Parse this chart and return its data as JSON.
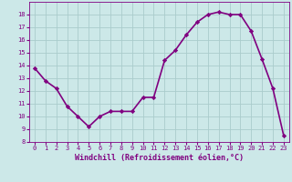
{
  "x": [
    0,
    1,
    2,
    3,
    4,
    5,
    6,
    7,
    8,
    9,
    10,
    11,
    12,
    13,
    14,
    15,
    16,
    17,
    18,
    19,
    20,
    21,
    22,
    23
  ],
  "y": [
    13.8,
    12.8,
    12.2,
    10.8,
    10.0,
    9.2,
    10.0,
    10.4,
    10.4,
    10.4,
    11.5,
    11.5,
    14.4,
    15.2,
    16.4,
    17.4,
    18.0,
    18.2,
    18.0,
    18.0,
    16.7,
    14.5,
    12.2,
    8.5
  ],
  "line_color": "#800080",
  "marker": "D",
  "marker_size": 2.2,
  "bg_color": "#cce8e8",
  "grid_color": "#aacccc",
  "xlabel": "Windchill (Refroidissement éolien,°C)",
  "xlabel_color": "#800080",
  "tick_color": "#800080",
  "ylim": [
    8,
    19
  ],
  "xlim": [
    -0.5,
    23.5
  ],
  "yticks": [
    8,
    9,
    10,
    11,
    12,
    13,
    14,
    15,
    16,
    17,
    18
  ],
  "xticks": [
    0,
    1,
    2,
    3,
    4,
    5,
    6,
    7,
    8,
    9,
    10,
    11,
    12,
    13,
    14,
    15,
    16,
    17,
    18,
    19,
    20,
    21,
    22,
    23
  ],
  "linewidth": 1.2,
  "tick_fontsize": 5.0,
  "xlabel_fontsize": 6.0
}
